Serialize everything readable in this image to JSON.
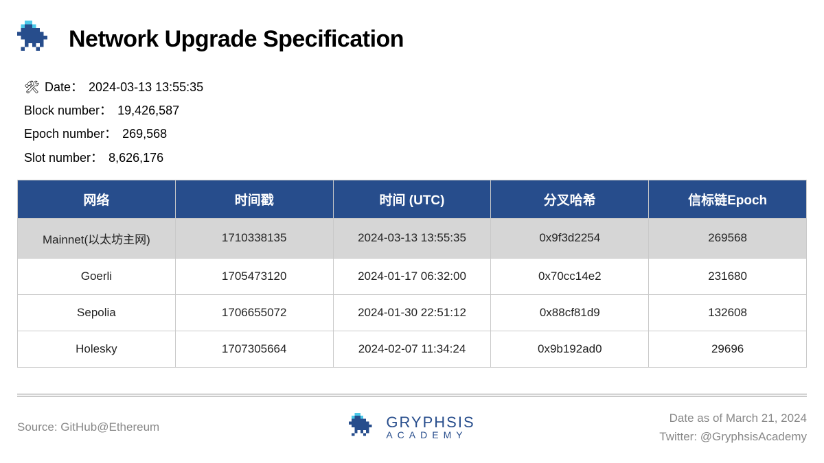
{
  "title": "Network Upgrade Specification",
  "meta": {
    "date_label": "Date：",
    "date_value": "2024-03-13 13:55:35",
    "block_label": "Block number：",
    "block_value": "19,426,587",
    "epoch_label": "Epoch number：",
    "epoch_value": "269,568",
    "slot_label": "Slot number：",
    "slot_value": "8,626,176"
  },
  "table": {
    "header_bg": "#274d8c",
    "header_color": "#ffffff",
    "border_color": "#c9c9c9",
    "highlight_bg": "#d6d6d6",
    "columns": [
      "网络",
      "时间戳",
      "时间 (UTC)",
      "分叉哈希",
      "信标链Epoch"
    ],
    "rows": [
      {
        "highlight": true,
        "cells": [
          "Mainnet(以太坊主网)",
          "1710338135",
          "2024-03-13 13:55:35",
          "0x9f3d2254",
          "269568"
        ]
      },
      {
        "highlight": false,
        "cells": [
          "Goerli",
          "1705473120",
          "2024-01-17 06:32:00",
          "0x70cc14e2",
          "231680"
        ]
      },
      {
        "highlight": false,
        "cells": [
          "Sepolia",
          "1706655072",
          "2024-01-30 22:51:12",
          "0x88cf81d9",
          "132608"
        ]
      },
      {
        "highlight": false,
        "cells": [
          "Holesky",
          "1707305664",
          "2024-02-07 11:34:24",
          "0x9b192ad0",
          "29696"
        ]
      }
    ]
  },
  "footer": {
    "source": "Source: GitHub@Ethereum",
    "brand_top": "GRYPHSIS",
    "brand_bottom": "ACADEMY",
    "date_as_of": "Date as of March 21, 2024",
    "twitter": "Twitter: @GryphsisAcademy"
  },
  "colors": {
    "brand_blue": "#274d8c",
    "muted": "#888888",
    "logo_cyan": "#4ac8e8",
    "logo_blue": "#274d8c"
  }
}
